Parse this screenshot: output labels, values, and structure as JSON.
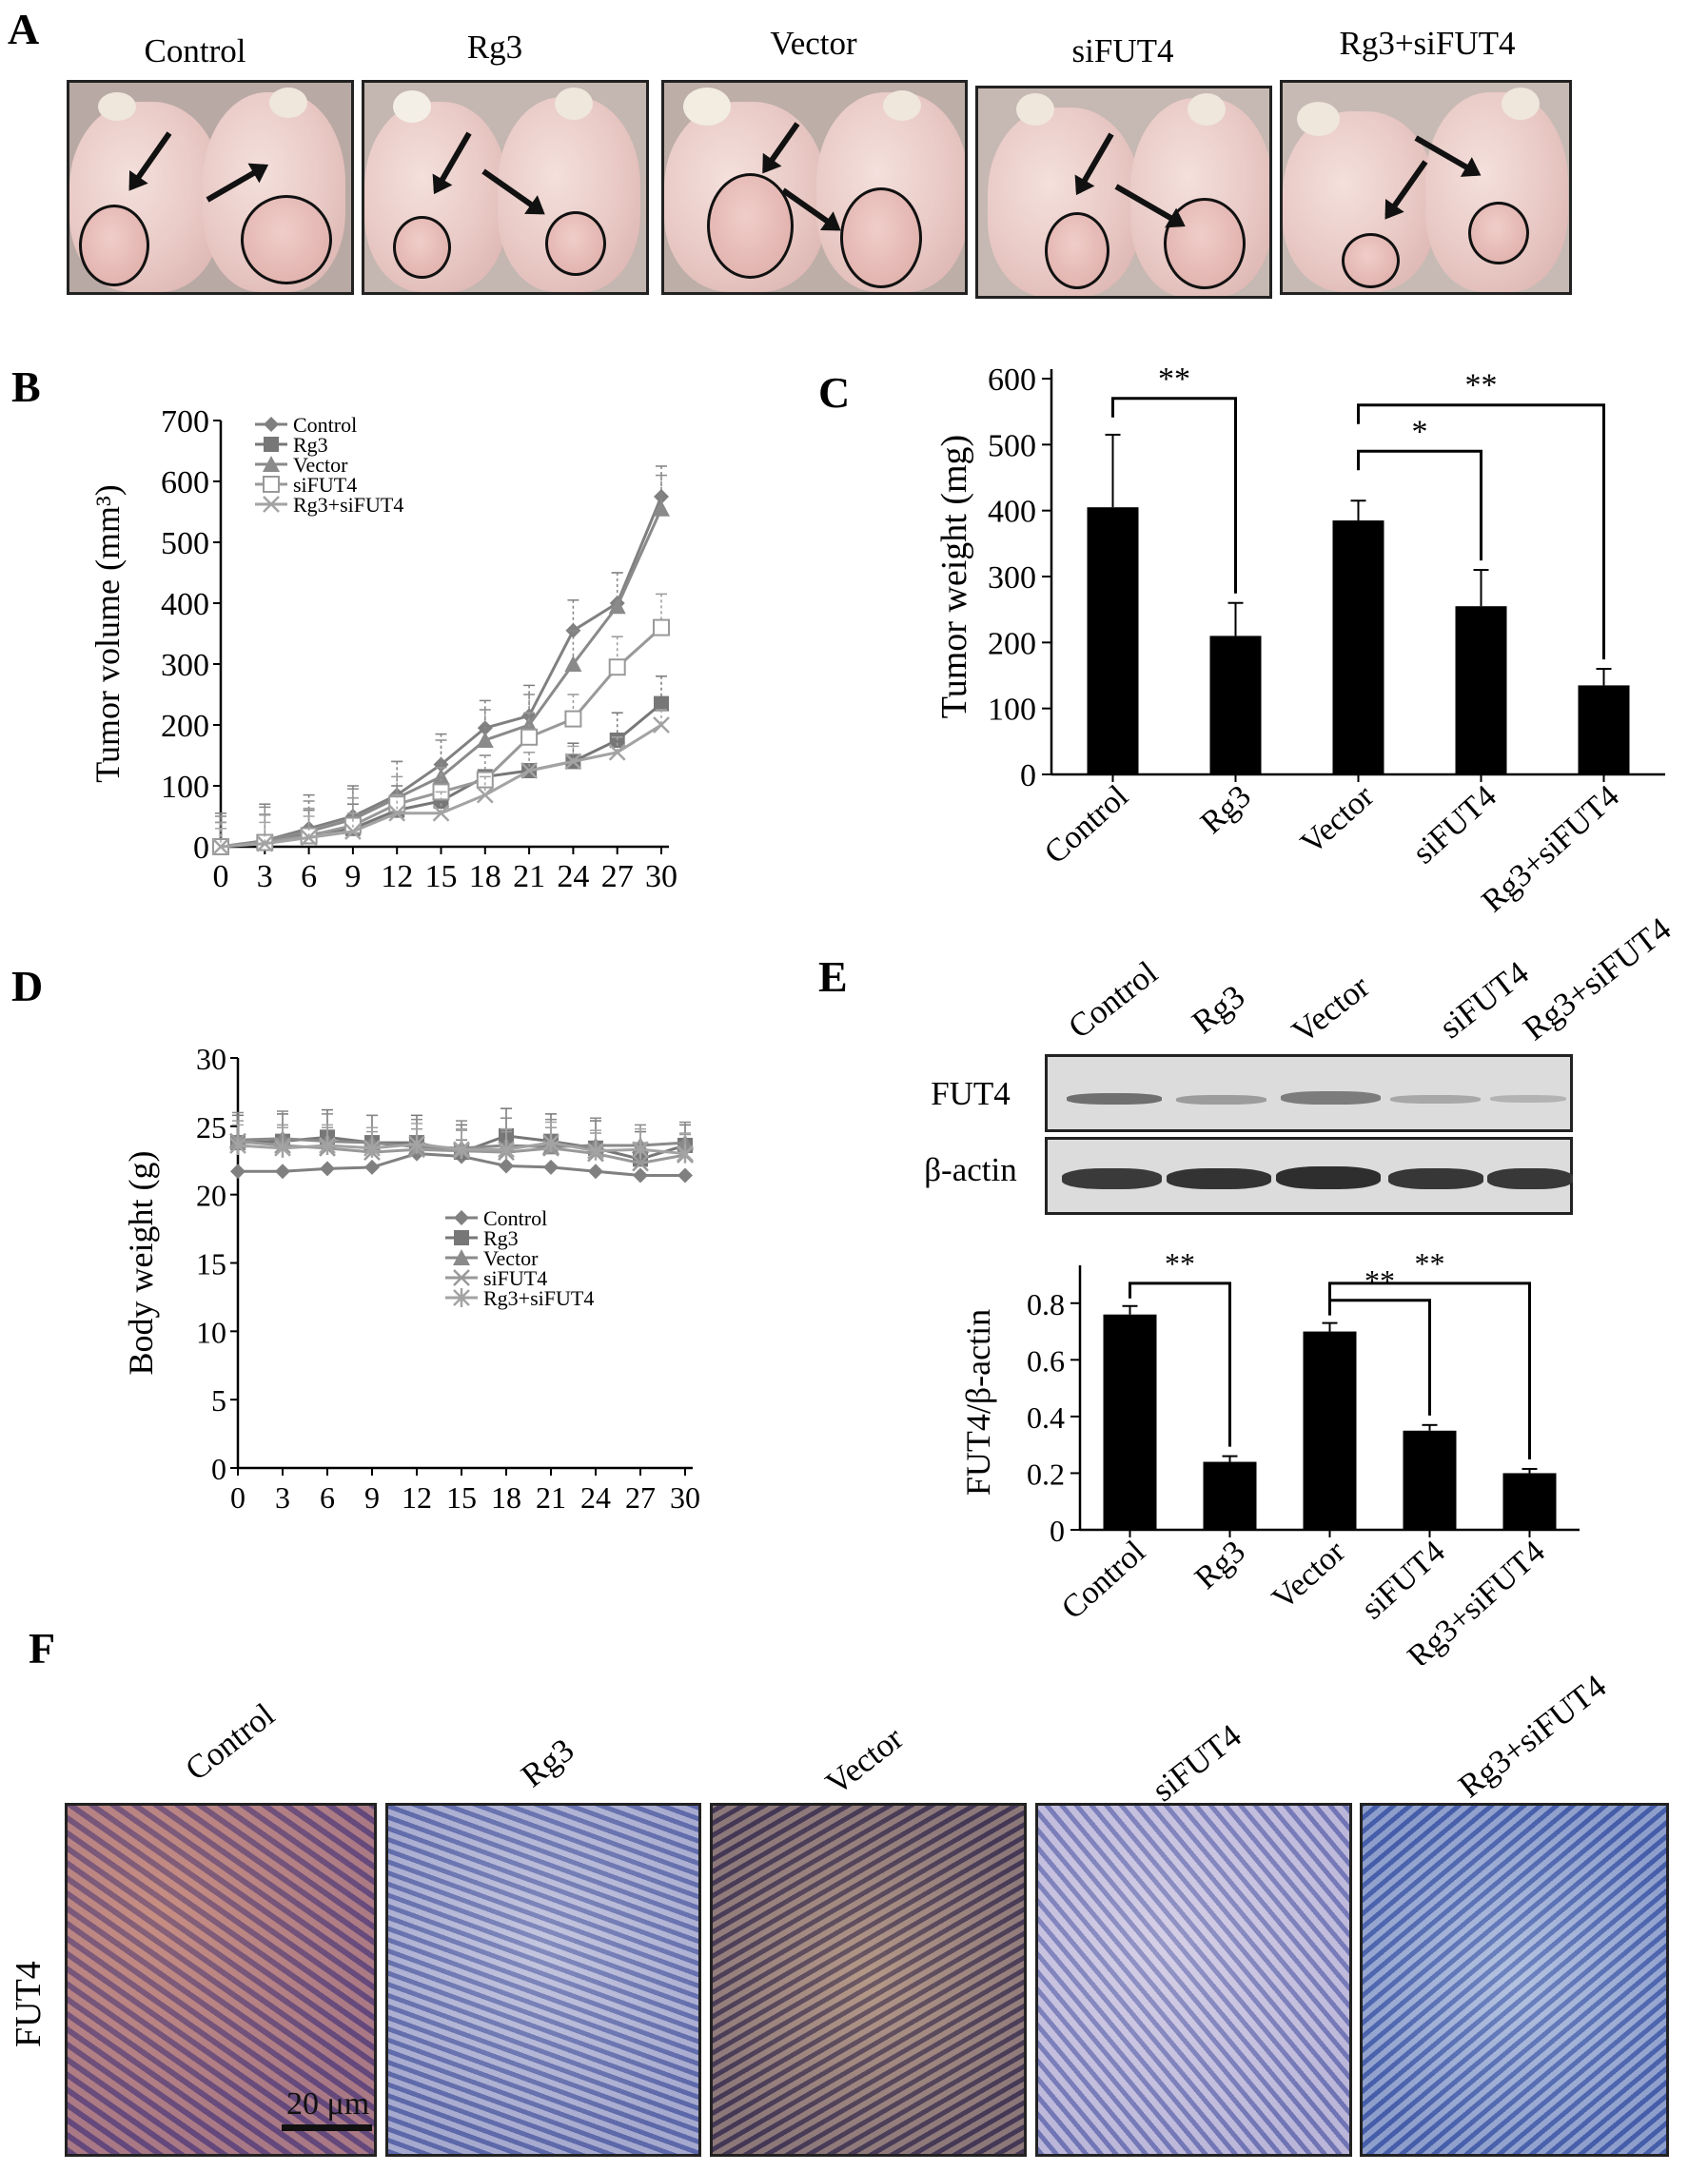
{
  "figure": {
    "panel_labels": [
      "A",
      "B",
      "C",
      "D",
      "E",
      "F"
    ],
    "groups": [
      "Control",
      "Rg3",
      "Vector",
      "siFUT4",
      "Rg3+siFUT4"
    ],
    "colors": {
      "control": "#808080",
      "rg3": "#777777",
      "vector": "#8a8a8a",
      "sifut4": "#999999",
      "combo": "#999999",
      "bar": "#000000"
    },
    "panel_e_rows": [
      "FUT4",
      "β-actin"
    ],
    "panel_f_row": "FUT4",
    "scale_bar": "20 μm",
    "significance": [
      "**",
      "*",
      "**",
      "**",
      "**",
      "**"
    ]
  },
  "chart_data": [
    {
      "panel": "B",
      "type": "line",
      "xlabel": "",
      "ylabel": "Tumor volume (mm³)",
      "x": [
        0,
        3,
        6,
        9,
        12,
        15,
        18,
        21,
        24,
        27,
        30
      ],
      "xticks": [
        "0",
        "3",
        "6",
        "9",
        "12",
        "15",
        "18",
        "21",
        "24",
        "27",
        "30"
      ],
      "yticks": [
        "0",
        "100",
        "200",
        "300",
        "400",
        "500",
        "600",
        "700"
      ],
      "ylim": [
        0,
        700
      ],
      "legend_position": "top-left",
      "series": [
        {
          "name": "Control",
          "marker": "diamond",
          "values": [
            0,
            10,
            30,
            50,
            85,
            135,
            195,
            215,
            355,
            400,
            575
          ],
          "errors": [
            55,
            60,
            55,
            50,
            55,
            50,
            45,
            50,
            50,
            50,
            50
          ]
        },
        {
          "name": "Rg3",
          "marker": "square",
          "values": [
            0,
            8,
            20,
            30,
            60,
            75,
            115,
            125,
            140,
            175,
            235
          ],
          "errors": [
            40,
            45,
            40,
            40,
            40,
            35,
            35,
            30,
            30,
            45,
            45
          ]
        },
        {
          "name": "Vector",
          "marker": "triangle",
          "values": [
            0,
            10,
            25,
            45,
            80,
            115,
            175,
            200,
            300,
            395,
            555
          ],
          "errors": [
            50,
            55,
            50,
            50,
            60,
            60,
            50,
            50,
            55,
            55,
            55
          ]
        },
        {
          "name": "siFUT4",
          "marker": "open-square",
          "values": [
            0,
            7,
            18,
            35,
            70,
            90,
            110,
            180,
            210,
            295,
            360
          ],
          "errors": [
            40,
            45,
            45,
            45,
            45,
            40,
            40,
            40,
            40,
            50,
            55
          ]
        },
        {
          "name": "Rg3+siFUT4",
          "marker": "x",
          "values": [
            0,
            5,
            15,
            25,
            55,
            55,
            85,
            125,
            140,
            155,
            200
          ],
          "errors": [
            30,
            35,
            35,
            30,
            30,
            35,
            30,
            30,
            25,
            25,
            25
          ]
        }
      ]
    },
    {
      "panel": "C",
      "type": "bar",
      "xlabel": "",
      "ylabel": "Tumor weight (mg)",
      "categories": [
        "Control",
        "Rg3",
        "Vector",
        "siFUT4",
        "Rg3+siFUT4"
      ],
      "values": [
        405,
        210,
        385,
        255,
        135
      ],
      "errors": [
        110,
        50,
        30,
        55,
        25
      ],
      "yticks": [
        "0",
        "100",
        "200",
        "300",
        "400",
        "500",
        "600"
      ],
      "ylim": [
        0,
        600
      ],
      "brackets": [
        {
          "from": 0,
          "to": 1,
          "label": "**",
          "level": 570
        },
        {
          "from": 2,
          "to": 3,
          "label": "*",
          "level": 490
        },
        {
          "from": 2,
          "to": 4,
          "label": "**",
          "level": 560
        }
      ]
    },
    {
      "panel": "D",
      "type": "line",
      "xlabel": "",
      "ylabel": "Body weight (g)",
      "x": [
        0,
        3,
        6,
        9,
        12,
        15,
        18,
        21,
        24,
        27,
        30
      ],
      "xticks": [
        "0",
        "3",
        "6",
        "9",
        "12",
        "15",
        "18",
        "21",
        "24",
        "27",
        "30"
      ],
      "yticks": [
        "0",
        "5",
        "10",
        "15",
        "20",
        "25",
        "30"
      ],
      "ylim": [
        0,
        30
      ],
      "legend_position": "center-right",
      "series": [
        {
          "name": "Control",
          "marker": "diamond",
          "values": [
            21.7,
            21.7,
            21.9,
            22.0,
            23.0,
            22.8,
            22.1,
            22.0,
            21.7,
            21.4,
            21.4
          ],
          "errors": [
            0,
            0,
            0,
            0,
            1.0,
            1.2,
            0,
            0,
            0,
            0,
            0
          ]
        },
        {
          "name": "Rg3",
          "marker": "square",
          "values": [
            23.8,
            23.9,
            24.2,
            23.8,
            23.8,
            23.1,
            24.3,
            23.9,
            23.4,
            22.6,
            23.6
          ],
          "errors": [
            2.0,
            2.0,
            2.0,
            2.0,
            2.0,
            2.0,
            2.0,
            2.0,
            2.0,
            2.0,
            1.5
          ]
        },
        {
          "name": "Vector",
          "marker": "triangle",
          "values": [
            24.0,
            24.1,
            23.9,
            23.8,
            23.5,
            23.4,
            23.6,
            23.5,
            23.6,
            23.6,
            23.8
          ],
          "errors": [
            2.0,
            2.0,
            2.0,
            2.0,
            2.0,
            2.0,
            2.0,
            2.0,
            2.0,
            1.5,
            1.5
          ]
        },
        {
          "name": "siFUT4",
          "marker": "x",
          "values": [
            23.9,
            23.6,
            23.4,
            23.1,
            23.3,
            23.2,
            23.1,
            23.4,
            23.0,
            22.3,
            22.9
          ],
          "errors": [
            1.5,
            1.5,
            1.5,
            1.5,
            1.5,
            1.5,
            1.5,
            1.5,
            1.5,
            1.5,
            1.5
          ]
        },
        {
          "name": "Rg3+siFUT4",
          "marker": "asterisk",
          "values": [
            23.6,
            23.4,
            23.6,
            23.4,
            23.7,
            23.3,
            23.3,
            23.8,
            23.2,
            23.3,
            23.0
          ],
          "errors": [
            1.5,
            1.5,
            1.5,
            1.5,
            1.5,
            1.5,
            1.5,
            1.5,
            1.5,
            1.5,
            1.5
          ]
        }
      ]
    },
    {
      "panel": "E",
      "type": "bar",
      "xlabel": "",
      "ylabel": "FUT4/β-actin",
      "categories": [
        "Control",
        "Rg3",
        "Vector",
        "siFUT4",
        "Rg3+siFUT4"
      ],
      "values": [
        0.76,
        0.24,
        0.7,
        0.35,
        0.2
      ],
      "errors": [
        0.03,
        0.02,
        0.03,
        0.02,
        0.015
      ],
      "yticks": [
        "0",
        "0.2",
        "0.4",
        "0.6",
        "0.8"
      ],
      "ylim": [
        0,
        0.9
      ],
      "brackets": [
        {
          "from": 0,
          "to": 1,
          "label": "**",
          "level": 0.87
        },
        {
          "from": 2,
          "to": 3,
          "label": "**",
          "level": 0.81
        },
        {
          "from": 2,
          "to": 4,
          "label": "**",
          "level": 0.87
        }
      ]
    }
  ]
}
